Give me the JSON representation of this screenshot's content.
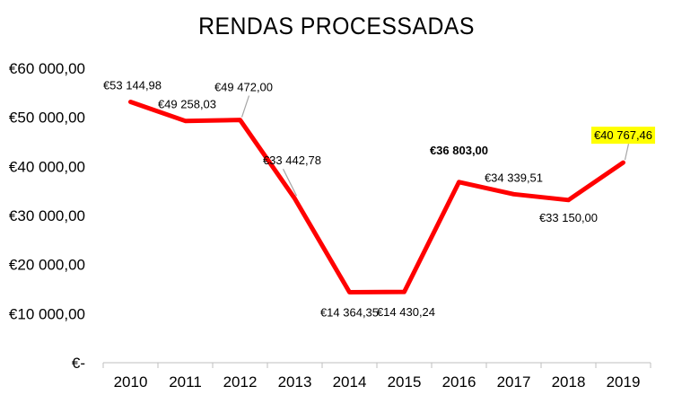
{
  "chart_data": {
    "type": "line",
    "title": "RENDAS  PROCESSADAS",
    "xlabel": "",
    "ylabel": "",
    "categories": [
      "2010",
      "2011",
      "2012",
      "2013",
      "2014",
      "2015",
      "2016",
      "2017",
      "2018",
      "2019"
    ],
    "series": [
      {
        "values": [
          53144.98,
          49258.03,
          49472.0,
          33442.78,
          14364.35,
          14430.24,
          36803.0,
          34339.51,
          33150.0,
          40767.46
        ],
        "color": "#ff0000"
      }
    ],
    "data_labels": [
      "€53 144,98",
      "€49 258,03",
      "€49 472,00",
      "€33 442,78",
      "€14 364,35",
      "€14 430,24",
      "€36 803,00",
      "€34 339,51",
      "€33 150,00",
      "€40 767,46"
    ],
    "y_tick_labels": [
      "€-",
      "€10 000,00",
      "€20 000,00",
      "€30 000,00",
      "€40 000,00",
      "€50 000,00",
      "€60 000,00"
    ],
    "y_ticks": [
      0,
      10000,
      20000,
      30000,
      40000,
      50000,
      60000
    ],
    "ylim": [
      0,
      60000
    ],
    "grid": false,
    "legend": "none",
    "highlight_color": "#ffff00"
  }
}
